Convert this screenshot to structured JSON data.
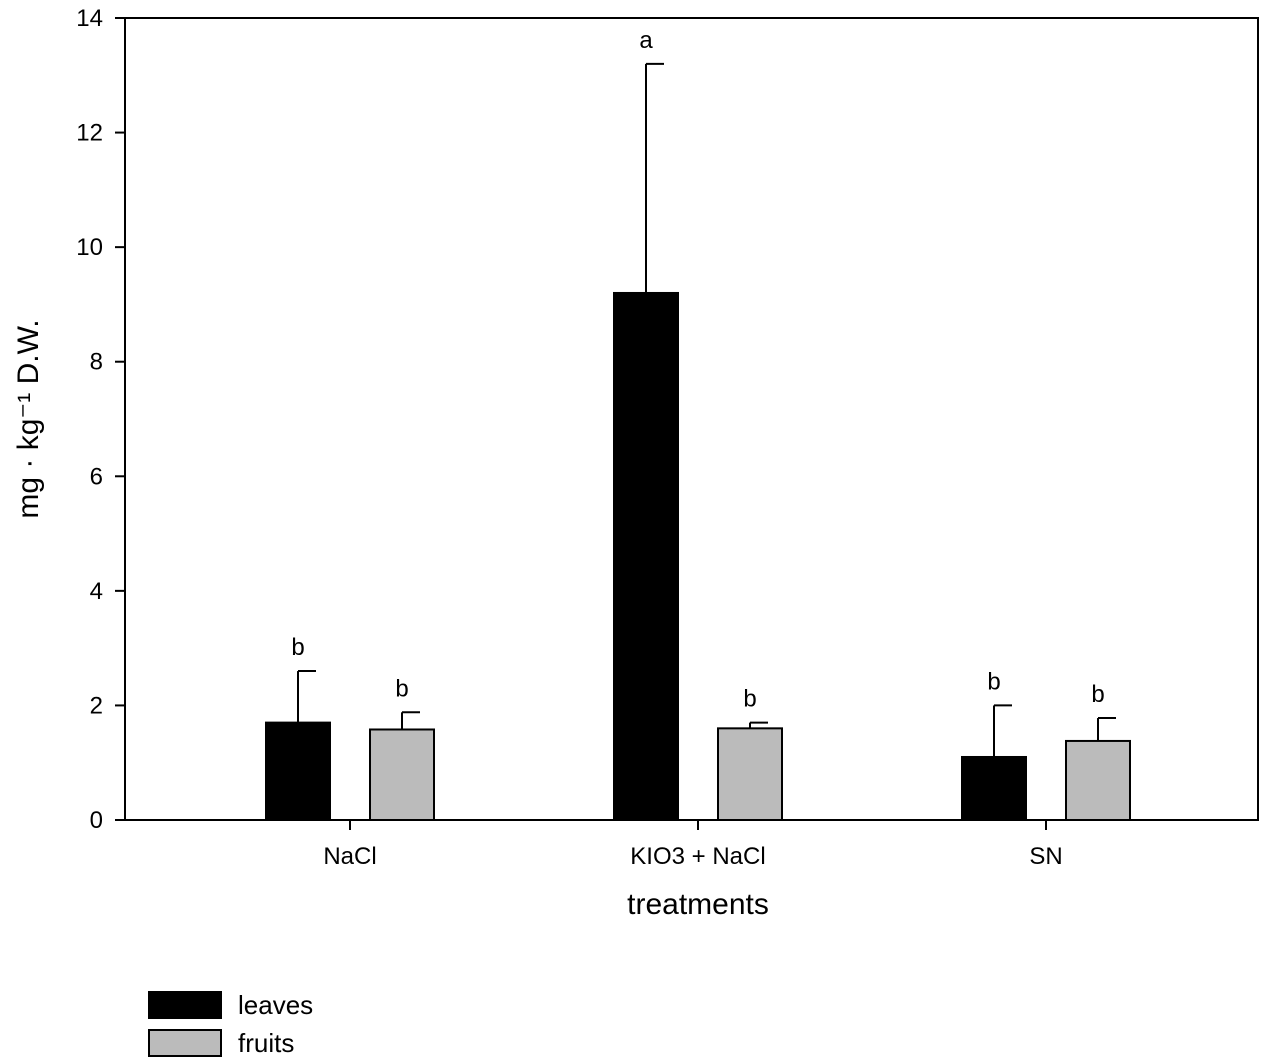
{
  "chart_data": {
    "type": "bar",
    "categories": [
      "NaCl",
      "KIO3 + NaCl",
      "SN"
    ],
    "series": [
      {
        "name": "leaves",
        "color": "#000000",
        "values": [
          1.7,
          9.2,
          1.1
        ],
        "errors": [
          0.9,
          4.0,
          0.9
        ],
        "labels": [
          "b",
          "a",
          "b"
        ]
      },
      {
        "name": "fruits",
        "color": "#bbbbbb",
        "values": [
          1.58,
          1.6,
          1.38
        ],
        "errors": [
          0.3,
          0.1,
          0.4
        ],
        "labels": [
          "b",
          "b",
          "b"
        ]
      }
    ],
    "title": "",
    "xlabel": "treatments",
    "ylabel": "mg · kg⁻¹ D.W.",
    "ylim": [
      0,
      14
    ],
    "yticks": [
      0,
      2,
      4,
      6,
      8,
      10,
      12,
      14
    ],
    "grid": false,
    "legend_position": "bottom-left"
  }
}
